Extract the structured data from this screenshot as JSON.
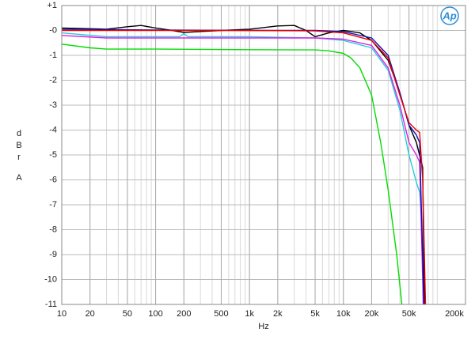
{
  "chart_data": {
    "type": "line",
    "x_label": "Hz",
    "y_label": "dBr",
    "y_label_unit": "A",
    "logo": "Ap",
    "xlog": true,
    "grid": true,
    "xlim": [
      10,
      200000
    ],
    "xticks": [
      10,
      20,
      50,
      100,
      200,
      500,
      {
        "value": 1000,
        "label": "1k"
      },
      {
        "value": 2000,
        "label": "2k"
      },
      {
        "value": 5000,
        "label": "5k"
      },
      {
        "value": 10000,
        "label": "10k"
      },
      {
        "value": 20000,
        "label": "20k"
      },
      {
        "value": 50000,
        "label": "50k"
      },
      {
        "value": 200000,
        "label": "200k"
      }
    ],
    "ylim": [
      -11,
      1
    ],
    "yticks": [
      {
        "value": 1,
        "label": "+1"
      },
      {
        "value": 0,
        "label": "-0"
      },
      -1,
      -2,
      -3,
      -4,
      -5,
      -6,
      -7,
      -8,
      -9,
      -10,
      -11
    ],
    "series": [
      {
        "color": "#00dd00",
        "x": [
          10,
          20,
          30,
          100,
          1000,
          5000,
          7000,
          10000,
          12000,
          15000,
          20000,
          25000,
          30000,
          37000,
          42000
        ],
        "values": [
          -0.55,
          -0.7,
          -0.75,
          -0.75,
          -0.77,
          -0.78,
          -0.82,
          -0.92,
          -1.1,
          -1.5,
          -2.6,
          -4.5,
          -6.4,
          -9,
          -11
        ]
      },
      {
        "color": "#22ccdd",
        "x": [
          10,
          30,
          100,
          180,
          200,
          220,
          1000,
          5000,
          10000,
          20000,
          30000,
          40000,
          50000,
          60000,
          65000,
          68000,
          72000
        ],
        "values": [
          -0.1,
          -0.25,
          -0.25,
          -0.25,
          -0.12,
          -0.25,
          -0.25,
          -0.3,
          -0.4,
          -0.7,
          -1.6,
          -3.2,
          -5,
          -6.1,
          -6.5,
          -7.5,
          -11
        ]
      },
      {
        "color": "#dd22dd",
        "x": [
          10,
          30,
          100,
          1000,
          5000,
          10000,
          20000,
          30000,
          40000,
          50000,
          60000,
          65000,
          71000
        ],
        "values": [
          -0.2,
          -0.3,
          -0.3,
          -0.3,
          -0.3,
          -0.35,
          -0.6,
          -1.5,
          -3,
          -4.5,
          -5,
          -5.3,
          -11
        ]
      },
      {
        "color": "#000000",
        "x": [
          10,
          30,
          50,
          70,
          100,
          150,
          200,
          500,
          1000,
          2000,
          3000,
          4000,
          5000,
          7000,
          10000,
          15000,
          20000,
          30000,
          40000,
          50000,
          60000,
          70000,
          73000
        ],
        "values": [
          0.1,
          0.05,
          0.15,
          0.2,
          0.1,
          0,
          -0.08,
          0,
          0.05,
          0.18,
          0.2,
          0,
          -0.25,
          -0.1,
          0,
          -0.1,
          -0.4,
          -1.2,
          -2.5,
          -3.8,
          -4.5,
          -5.5,
          -11
        ]
      },
      {
        "color": "#1111bb",
        "x": [
          10,
          100,
          1000,
          5000,
          10000,
          20000,
          30000,
          40000,
          50000,
          60000,
          65000,
          72000
        ],
        "values": [
          0.05,
          0.02,
          0,
          0,
          -0.05,
          -0.3,
          -1,
          -2.5,
          -3.8,
          -4.2,
          -4.5,
          -11
        ]
      },
      {
        "color": "#ee0000",
        "x": [
          10,
          100,
          1000,
          5000,
          10000,
          20000,
          30000,
          40000,
          50000,
          60000,
          65000,
          70000,
          75000
        ],
        "values": [
          0,
          0,
          0,
          -0.02,
          -0.1,
          -0.4,
          -1.1,
          -2.6,
          -3.7,
          -4,
          -4.1,
          -6,
          -11
        ]
      }
    ]
  }
}
